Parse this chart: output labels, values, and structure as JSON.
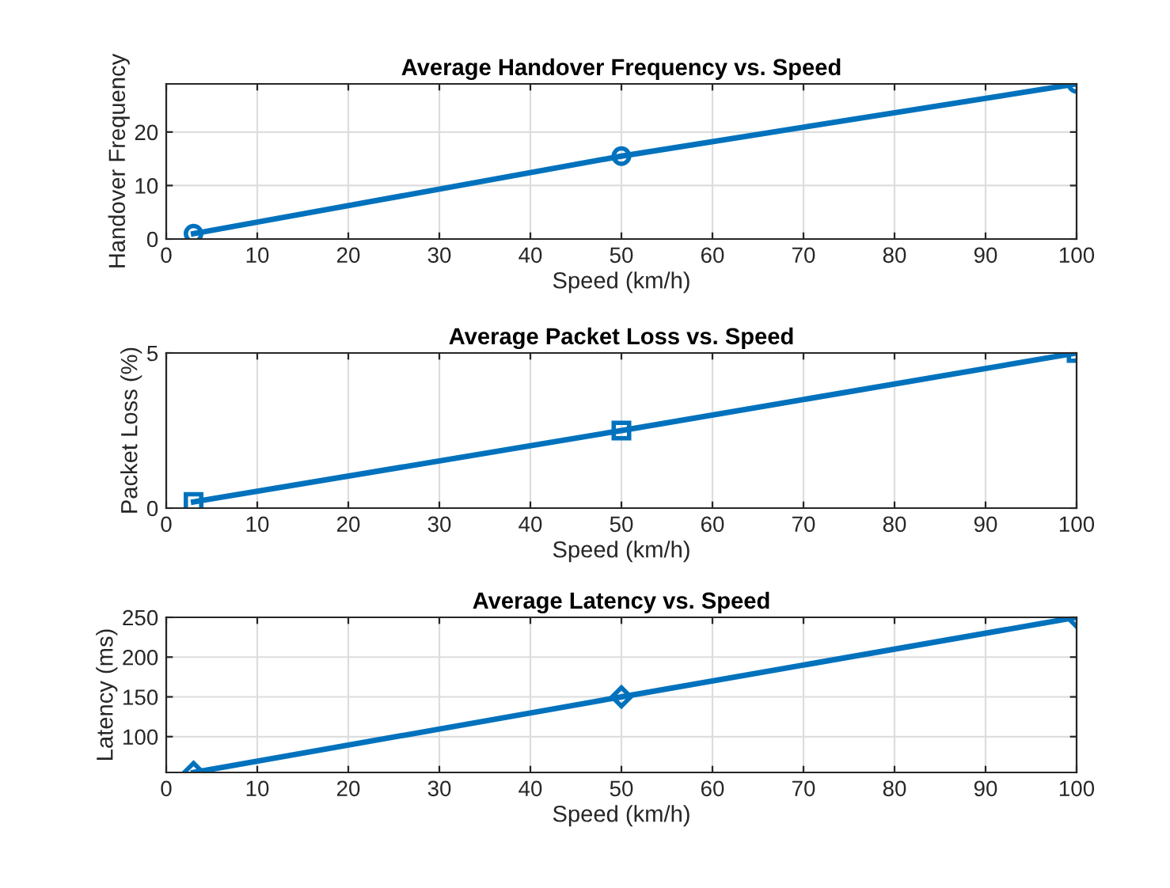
{
  "chart_data": [
    {
      "type": "line",
      "title": "Average Handover Frequency vs. Speed",
      "xlabel": "Speed (km/h)",
      "ylabel": "Handover Frequency",
      "x": [
        3,
        50,
        100
      ],
      "series": [
        {
          "color": "#0072bd",
          "values": [
            1,
            15.5,
            29
          ]
        }
      ],
      "marker": "circle",
      "line_style": "solid",
      "grid": true,
      "xlim": [
        0,
        100
      ],
      "xticks": [
        0,
        10,
        20,
        30,
        40,
        50,
        60,
        70,
        80,
        90,
        100
      ],
      "ylim": [
        0,
        29
      ],
      "yticks": [
        0,
        10,
        20
      ]
    },
    {
      "type": "line",
      "title": "Average Packet Loss vs. Speed",
      "xlabel": "Speed (km/h)",
      "ylabel": "Packet Loss (%)",
      "x": [
        3,
        50,
        100
      ],
      "series": [
        {
          "color": "#0072bd",
          "values": [
            0.2,
            2.5,
            5
          ]
        }
      ],
      "marker": "square",
      "line_style": "solid",
      "grid": true,
      "xlim": [
        0,
        100
      ],
      "xticks": [
        0,
        10,
        20,
        30,
        40,
        50,
        60,
        70,
        80,
        90,
        100
      ],
      "ylim": [
        0,
        5
      ],
      "yticks": [
        0,
        5
      ]
    },
    {
      "type": "line",
      "title": "Average Latency vs. Speed",
      "xlabel": "Speed (km/h)",
      "ylabel": "Latency (ms)",
      "x": [
        3,
        50,
        100
      ],
      "series": [
        {
          "color": "#0072bd",
          "values": [
            55,
            150,
            250
          ]
        }
      ],
      "marker": "diamond",
      "line_style": "solid",
      "grid": true,
      "xlim": [
        0,
        100
      ],
      "xticks": [
        0,
        10,
        20,
        30,
        40,
        50,
        60,
        70,
        80,
        90,
        100
      ],
      "ylim": [
        55,
        250
      ],
      "yticks": [
        100,
        150,
        200,
        250
      ]
    }
  ]
}
